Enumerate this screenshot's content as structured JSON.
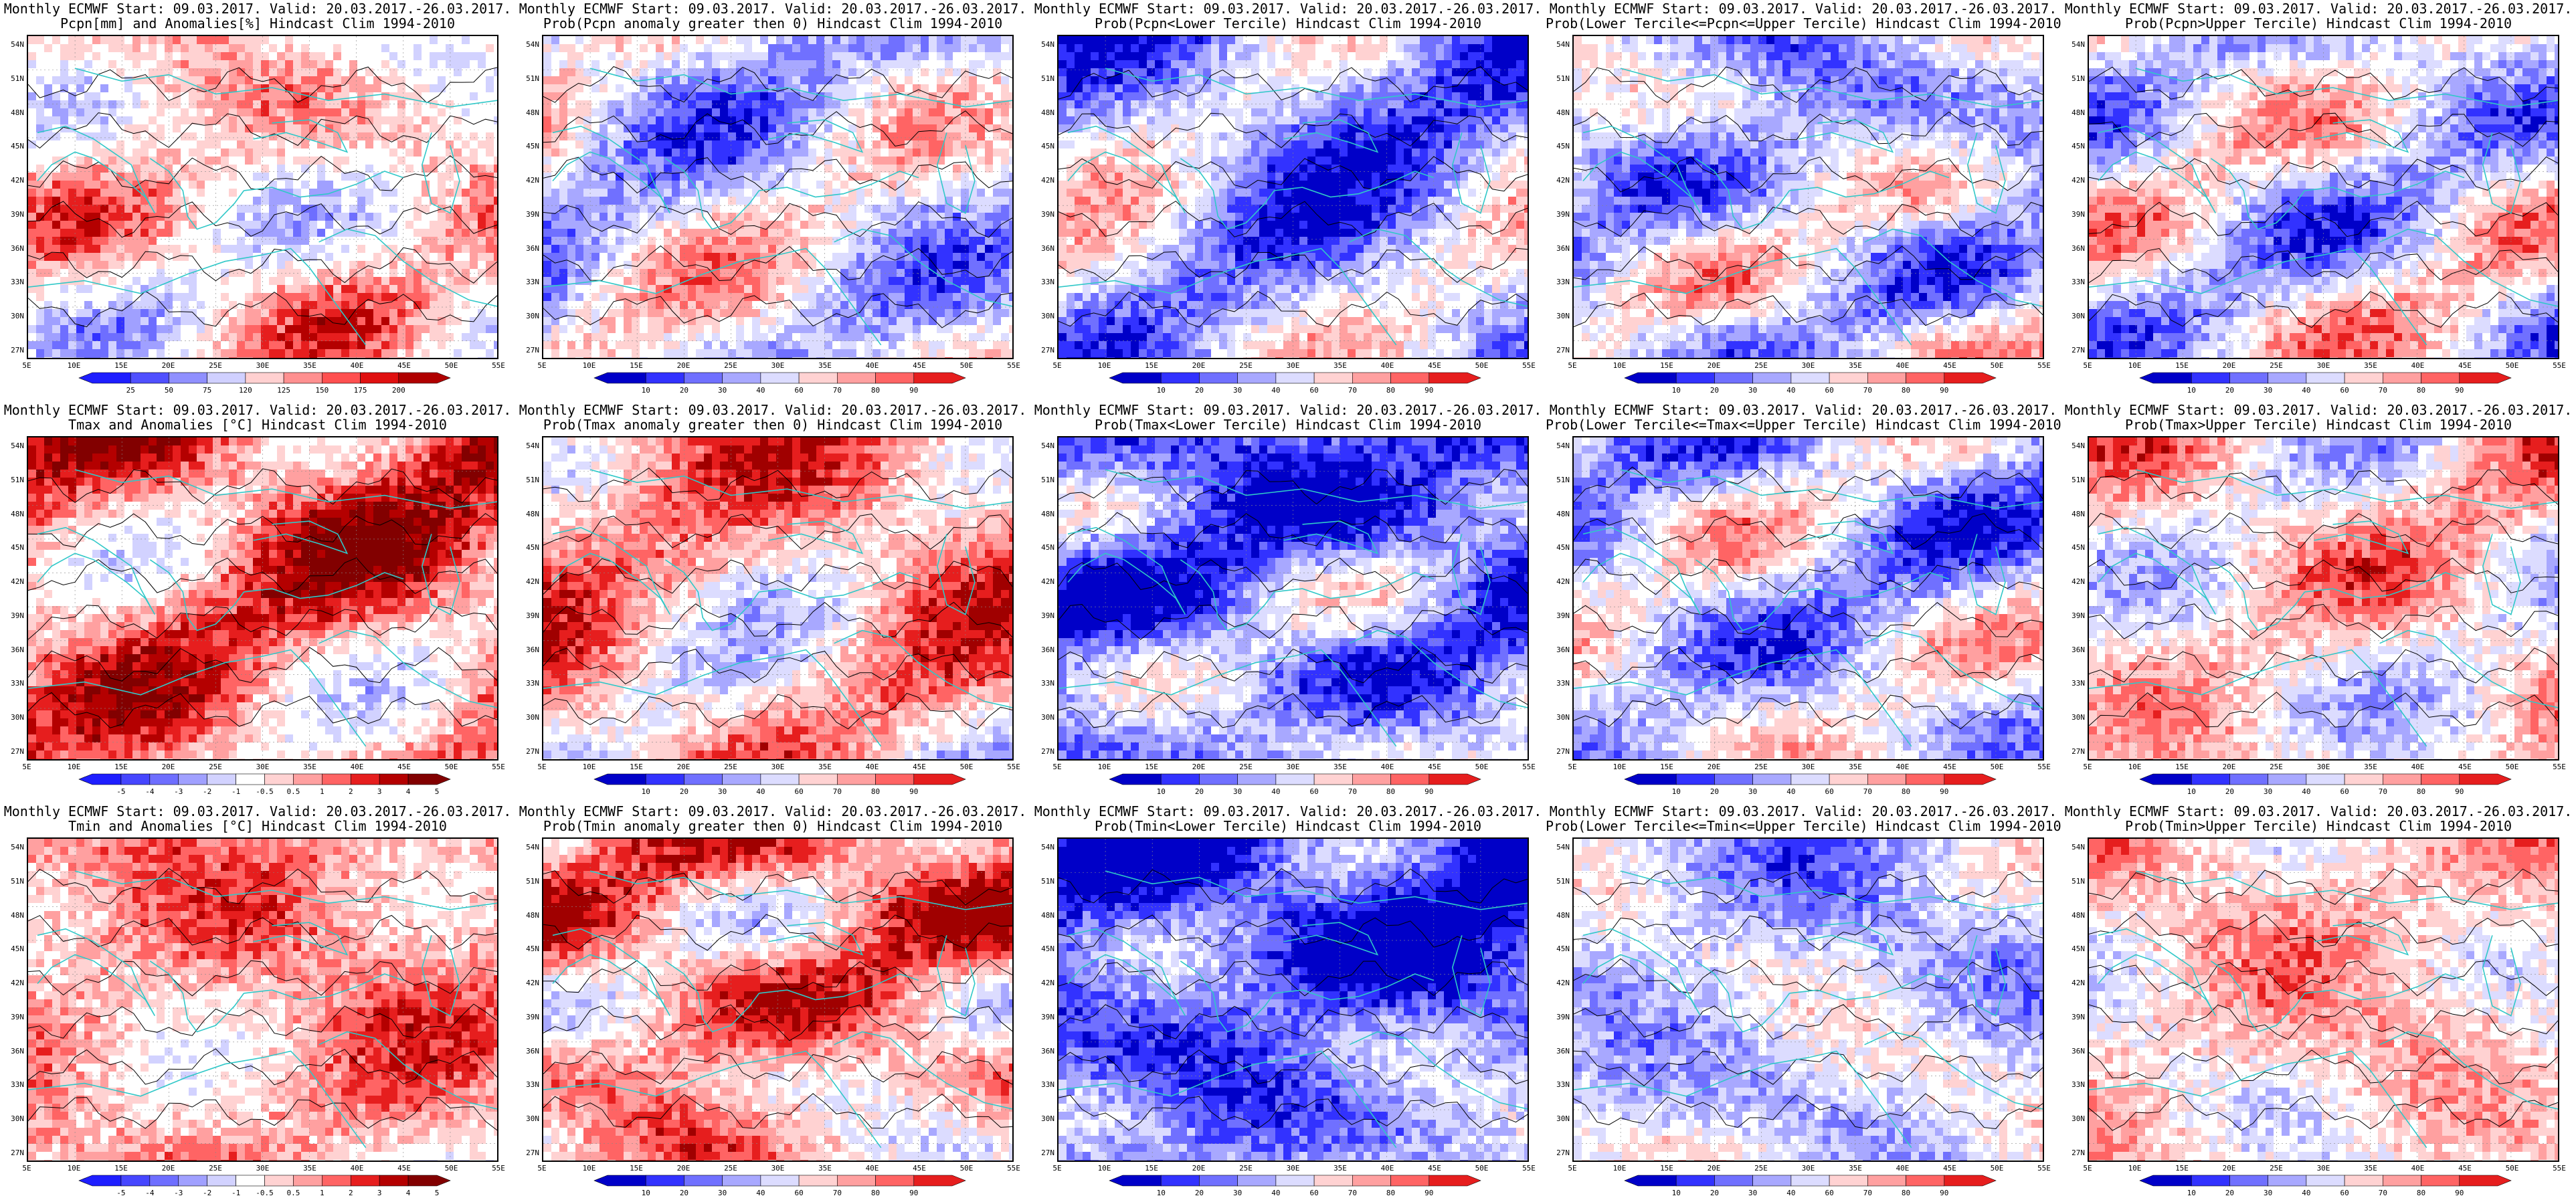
{
  "axes": {
    "lat_labels": [
      "54N",
      "51N",
      "48N",
      "45N",
      "42N",
      "39N",
      "36N",
      "33N",
      "30N",
      "27N"
    ],
    "lon_labels": [
      "5E",
      "10E",
      "15E",
      "20E",
      "25E",
      "30E",
      "35E",
      "40E",
      "45E",
      "50E",
      "55E"
    ]
  },
  "palettes": {
    "anomaly_red": [
      "#ffffff",
      "#ffd0d0",
      "#ffa0a0",
      "#ff6e6e",
      "#f03c3c",
      "#c80000",
      "#960000"
    ],
    "prob": [
      "#0000c8",
      "#3232ff",
      "#7070ff",
      "#a8a8ff",
      "#dcdcff",
      "#ffffff",
      "#ffd2d2",
      "#ffa0a0",
      "#ff6464",
      "#e61e1e",
      "#a00000"
    ],
    "anomaly_div": [
      "#3232ff",
      "#6e6eff",
      "#a0a0ff",
      "#d2d2ff",
      "#ffffff",
      "#ffffff",
      "#ffd2d2",
      "#ffa0a0",
      "#ff6464",
      "#e61e1e",
      "#b40000",
      "#820000"
    ],
    "coast": "#30c8c8",
    "contour": "#000000"
  },
  "panels": [
    {
      "id": "pcpn-anom",
      "title1": "Monthly ECMWF Start: 09.03.2017. Valid: 20.03.2017.-26.03.2017.",
      "title2": "Pcpn[mm] and Anomalies[%] Hindcast Clim 1994-2010",
      "palette": "anomaly_div",
      "bias": 0.0,
      "cbar_labels": [
        "25",
        "50",
        "75",
        "120",
        "125",
        "150",
        "175",
        "200"
      ],
      "cbar_colors": [
        "#1e1eff",
        "#5050ff",
        "#9090ff",
        "#d0d0ff",
        "#ffd0d0",
        "#ff9090",
        "#ff5050",
        "#e01010",
        "#b00000"
      ]
    },
    {
      "id": "pcpn-prob-gt0",
      "title1": "Monthly ECMWF Start: 09.03.2017. Valid: 20.03.2017.-26.03.2017.",
      "title2": "Prob(Pcpn anomaly greater then 0) Hindcast Clim 1994-2010",
      "palette": "prob",
      "bias": -0.2,
      "cbar_labels": [
        "10",
        "20",
        "30",
        "40",
        "60",
        "70",
        "80",
        "90"
      ],
      "cbar_colors": [
        "#0000c8",
        "#3232ff",
        "#7070ff",
        "#a8a8ff",
        "#dcdcff",
        "#ffd2d2",
        "#ffa0a0",
        "#ff6464",
        "#e61e1e"
      ]
    },
    {
      "id": "pcpn-prob-lower",
      "title1": "Monthly ECMWF Start: 09.03.2017. Valid: 20.03.2017.-26.03.2017.",
      "title2": "Prob(Pcpn<Lower Tercile) Hindcast Clim 1994-2010",
      "palette": "prob",
      "bias": -0.45,
      "cbar_labels": [
        "10",
        "20",
        "30",
        "40",
        "60",
        "70",
        "80",
        "90"
      ],
      "cbar_colors": [
        "#0000c8",
        "#3232ff",
        "#7070ff",
        "#a8a8ff",
        "#dcdcff",
        "#ffd2d2",
        "#ffa0a0",
        "#ff6464",
        "#e61e1e"
      ]
    },
    {
      "id": "pcpn-prob-mid",
      "title1": "Monthly ECMWF Start: 09.03.2017. Valid: 20.03.2017.-26.03.2017.",
      "title2": "Prob(Lower Tercile<=Pcpn<=Upper Tercile) Hindcast Clim 1994-2010",
      "palette": "prob",
      "bias": -0.3,
      "cbar_labels": [
        "10",
        "20",
        "30",
        "40",
        "60",
        "70",
        "80",
        "90"
      ],
      "cbar_colors": [
        "#0000c8",
        "#3232ff",
        "#7070ff",
        "#a8a8ff",
        "#dcdcff",
        "#ffd2d2",
        "#ffa0a0",
        "#ff6464",
        "#e61e1e"
      ]
    },
    {
      "id": "pcpn-prob-upper",
      "title1": "Monthly ECMWF Start: 09.03.2017. Valid: 20.03.2017.-26.03.2017.",
      "title2": "Prob(Pcpn>Upper Tercile) Hindcast Clim 1994-2010",
      "palette": "prob",
      "bias": -0.15,
      "cbar_labels": [
        "10",
        "20",
        "30",
        "40",
        "60",
        "70",
        "80",
        "90"
      ],
      "cbar_colors": [
        "#0000c8",
        "#3232ff",
        "#7070ff",
        "#a8a8ff",
        "#dcdcff",
        "#ffd2d2",
        "#ffa0a0",
        "#ff6464",
        "#e61e1e"
      ]
    },
    {
      "id": "tmax-anom",
      "title1": "Monthly ECMWF Start: 09.03.2017. Valid: 20.03.2017.-26.03.2017.",
      "title2": "Tmax and Anomalies [°C] Hindcast Clim 1994-2010",
      "palette": "anomaly_div",
      "bias": 0.45,
      "cbar_labels": [
        "-5",
        "-4",
        "-3",
        "-2",
        "-1",
        "-0.5",
        "0.5",
        "1",
        "2",
        "3",
        "4",
        "5"
      ],
      "cbar_colors": [
        "#1e1eff",
        "#4646ff",
        "#6e6eff",
        "#a0a0ff",
        "#d2d2ff",
        "#ffffff",
        "#ffd2d2",
        "#ffa0a0",
        "#ff6464",
        "#e61e1e",
        "#b40000",
        "#820000"
      ]
    },
    {
      "id": "tmax-prob-gt0",
      "title1": "Monthly ECMWF Start: 09.03.2017. Valid: 20.03.2017.-26.03.2017.",
      "title2": "Prob(Tmax anomaly greater then 0) Hindcast Clim 1994-2010",
      "palette": "prob",
      "bias": 0.4,
      "cbar_labels": [
        "10",
        "20",
        "30",
        "40",
        "60",
        "70",
        "80",
        "90"
      ],
      "cbar_colors": [
        "#0000c8",
        "#3232ff",
        "#7070ff",
        "#a8a8ff",
        "#dcdcff",
        "#ffd2d2",
        "#ffa0a0",
        "#ff6464",
        "#e61e1e"
      ]
    },
    {
      "id": "tmax-prob-lower",
      "title1": "Monthly ECMWF Start: 09.03.2017. Valid: 20.03.2017.-26.03.2017.",
      "title2": "Prob(Tmax<Lower Tercile) Hindcast Clim 1994-2010",
      "palette": "prob",
      "bias": -0.7,
      "cbar_labels": [
        "10",
        "20",
        "30",
        "40",
        "60",
        "70",
        "80",
        "90"
      ],
      "cbar_colors": [
        "#0000c8",
        "#3232ff",
        "#7070ff",
        "#a8a8ff",
        "#dcdcff",
        "#ffd2d2",
        "#ffa0a0",
        "#ff6464",
        "#e61e1e"
      ]
    },
    {
      "id": "tmax-prob-mid",
      "title1": "Monthly ECMWF Start: 09.03.2017. Valid: 20.03.2017.-26.03.2017.",
      "title2": "Prob(Lower Tercile<=Tmax<=Upper Tercile) Hindcast Clim 1994-2010",
      "palette": "prob",
      "bias": -0.3,
      "cbar_labels": [
        "10",
        "20",
        "30",
        "40",
        "60",
        "70",
        "80",
        "90"
      ],
      "cbar_colors": [
        "#0000c8",
        "#3232ff",
        "#7070ff",
        "#a8a8ff",
        "#dcdcff",
        "#ffd2d2",
        "#ffa0a0",
        "#ff6464",
        "#e61e1e"
      ]
    },
    {
      "id": "tmax-prob-upper",
      "title1": "Monthly ECMWF Start: 09.03.2017. Valid: 20.03.2017.-26.03.2017.",
      "title2": "Prob(Tmax>Upper Tercile) Hindcast Clim 1994-2010",
      "palette": "prob",
      "bias": 0.15,
      "cbar_labels": [
        "10",
        "20",
        "30",
        "40",
        "60",
        "70",
        "80",
        "90"
      ],
      "cbar_colors": [
        "#0000c8",
        "#3232ff",
        "#7070ff",
        "#a8a8ff",
        "#dcdcff",
        "#ffd2d2",
        "#ffa0a0",
        "#ff6464",
        "#e61e1e"
      ]
    },
    {
      "id": "tmin-anom",
      "title1": "Monthly ECMWF Start: 09.03.2017. Valid: 20.03.2017.-26.03.2017.",
      "title2": "Tmin and Anomalies [°C] Hindcast Clim 1994-2010",
      "palette": "anomaly_div",
      "bias": 0.3,
      "cbar_labels": [
        "-5",
        "-4",
        "-3",
        "-2",
        "-1",
        "-0.5",
        "0.5",
        "1",
        "2",
        "3",
        "4",
        "5"
      ],
      "cbar_colors": [
        "#1e1eff",
        "#4646ff",
        "#6e6eff",
        "#a0a0ff",
        "#d2d2ff",
        "#ffffff",
        "#ffd2d2",
        "#ffa0a0",
        "#ff6464",
        "#e61e1e",
        "#b40000",
        "#820000"
      ]
    },
    {
      "id": "tmin-prob-gt0",
      "title1": "Monthly ECMWF Start: 09.03.2017. Valid: 20.03.2017.-26.03.2017.",
      "title2": "Prob(Tmin anomaly greater then 0) Hindcast Clim 1994-2010",
      "palette": "prob",
      "bias": 0.5,
      "cbar_labels": [
        "10",
        "20",
        "30",
        "40",
        "60",
        "70",
        "80",
        "90"
      ],
      "cbar_colors": [
        "#0000c8",
        "#3232ff",
        "#7070ff",
        "#a8a8ff",
        "#dcdcff",
        "#ffd2d2",
        "#ffa0a0",
        "#ff6464",
        "#e61e1e"
      ]
    },
    {
      "id": "tmin-prob-lower",
      "title1": "Monthly ECMWF Start: 09.03.2017. Valid: 20.03.2017.-26.03.2017.",
      "title2": "Prob(Tmin<Lower Tercile) Hindcast Clim 1994-2010",
      "palette": "prob",
      "bias": -0.85,
      "cbar_labels": [
        "10",
        "20",
        "30",
        "40",
        "60",
        "70",
        "80",
        "90"
      ],
      "cbar_colors": [
        "#0000c8",
        "#3232ff",
        "#7070ff",
        "#a8a8ff",
        "#dcdcff",
        "#ffd2d2",
        "#ffa0a0",
        "#ff6464",
        "#e61e1e"
      ]
    },
    {
      "id": "tmin-prob-mid",
      "title1": "Monthly ECMWF Start: 09.03.2017. Valid: 20.03.2017.-26.03.2017.",
      "title2": "Prob(Lower Tercile<=Tmin<=Upper Tercile) Hindcast Clim 1994-2010",
      "palette": "prob",
      "bias": -0.3,
      "cbar_labels": [
        "10",
        "20",
        "30",
        "40",
        "60",
        "70",
        "80",
        "90"
      ],
      "cbar_colors": [
        "#0000c8",
        "#3232ff",
        "#7070ff",
        "#a8a8ff",
        "#dcdcff",
        "#ffd2d2",
        "#ffa0a0",
        "#ff6464",
        "#e61e1e"
      ]
    },
    {
      "id": "tmin-prob-upper",
      "title1": "Monthly ECMWF Start: 09.03.2017. Valid: 20.03.2017.-26.03.2017.",
      "title2": "Prob(Tmin>Upper Tercile) Hindcast Clim 1994-2010",
      "palette": "prob",
      "bias": 0.25,
      "cbar_labels": [
        "10",
        "20",
        "30",
        "40",
        "60",
        "70",
        "80",
        "90"
      ],
      "cbar_colors": [
        "#0000c8",
        "#3232ff",
        "#7070ff",
        "#a8a8ff",
        "#dcdcff",
        "#ffd2d2",
        "#ffa0a0",
        "#ff6464",
        "#e61e1e"
      ]
    }
  ]
}
